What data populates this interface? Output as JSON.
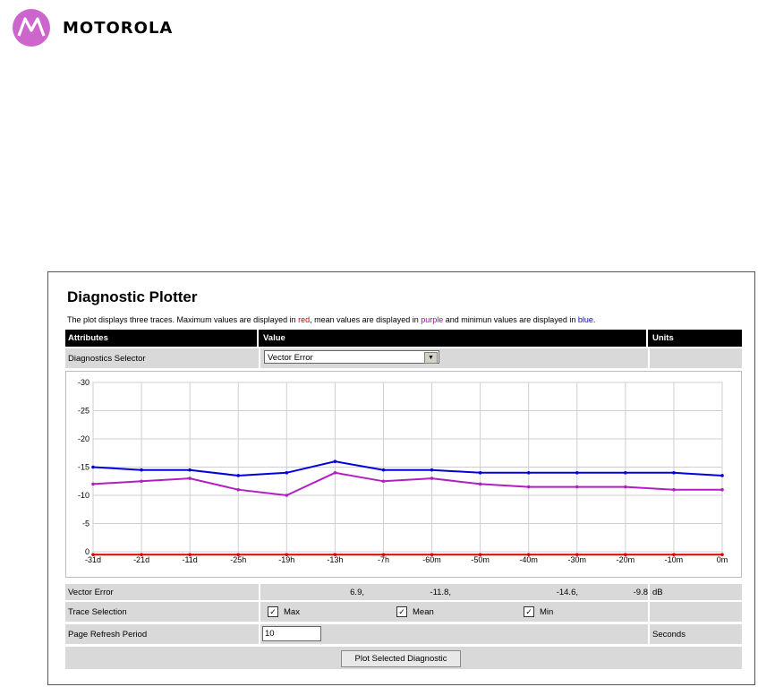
{
  "brand": {
    "name": "MOTOROLA",
    "logo_color": "#cc66cc"
  },
  "page": {
    "title": "Diagnostic Plotter",
    "description": {
      "prefix": "The plot displays three traces. Maximum values are displayed in ",
      "max_word": "red",
      "mid1": ", mean values are displayed in ",
      "mean_word": "purple",
      "mid2": " and minimun values are displayed in ",
      "min_word": "blue",
      "suffix": "."
    }
  },
  "table": {
    "headers": {
      "attributes": "Attributes",
      "value": "Value",
      "units": "Units"
    },
    "diagnostics_selector": {
      "label": "Diagnostics Selector",
      "selected": "Vector Error"
    },
    "readout": {
      "label": "Vector Error",
      "current": "6.9,",
      "max": "-11.8,",
      "mean": "-14.6,",
      "min": "-9.8",
      "units": "dB"
    },
    "trace_selection": {
      "label": "Trace Selection",
      "max_label": "Max",
      "mean_label": "Mean",
      "min_label": "Min",
      "max_checked": true,
      "mean_checked": true,
      "min_checked": true
    },
    "refresh": {
      "label": "Page Refresh Period",
      "value": "10",
      "units": "Seconds"
    },
    "plot_button": "Plot Selected Diagnostic"
  },
  "chart_data": {
    "type": "line",
    "x_ticks": [
      "-31d",
      "-21d",
      "-11d",
      "-25h",
      "-19h",
      "-13h",
      "-7h",
      "-60m",
      "-50m",
      "-40m",
      "-30m",
      "-20m",
      "-10m",
      "0m"
    ],
    "y_ticks": [
      "-30",
      "-25",
      "-20",
      "-15",
      "-10",
      "-5",
      "0"
    ],
    "ylim": [
      0,
      -30
    ],
    "grid": true,
    "series": [
      {
        "name": "Max",
        "color": "#dd0000",
        "values": [
          0.5,
          0.5,
          0.5,
          0.5,
          0.5,
          0.5,
          0.5,
          0.5,
          0.5,
          0.5,
          0.5,
          0.5,
          0.5,
          0.5
        ]
      },
      {
        "name": "Mean",
        "color": "#b020c0",
        "values": [
          -12,
          -12.5,
          -13,
          -11,
          -10,
          -14,
          -12.5,
          -13,
          -12,
          -11.5,
          -11.5,
          -11.5,
          -11,
          -11
        ]
      },
      {
        "name": "Min",
        "color": "#0000dd",
        "values": [
          -15,
          -14.5,
          -14.5,
          -13.5,
          -14,
          -16,
          -14.5,
          -14.5,
          -14,
          -14,
          -14,
          -14,
          -14,
          -13.5
        ]
      }
    ]
  }
}
